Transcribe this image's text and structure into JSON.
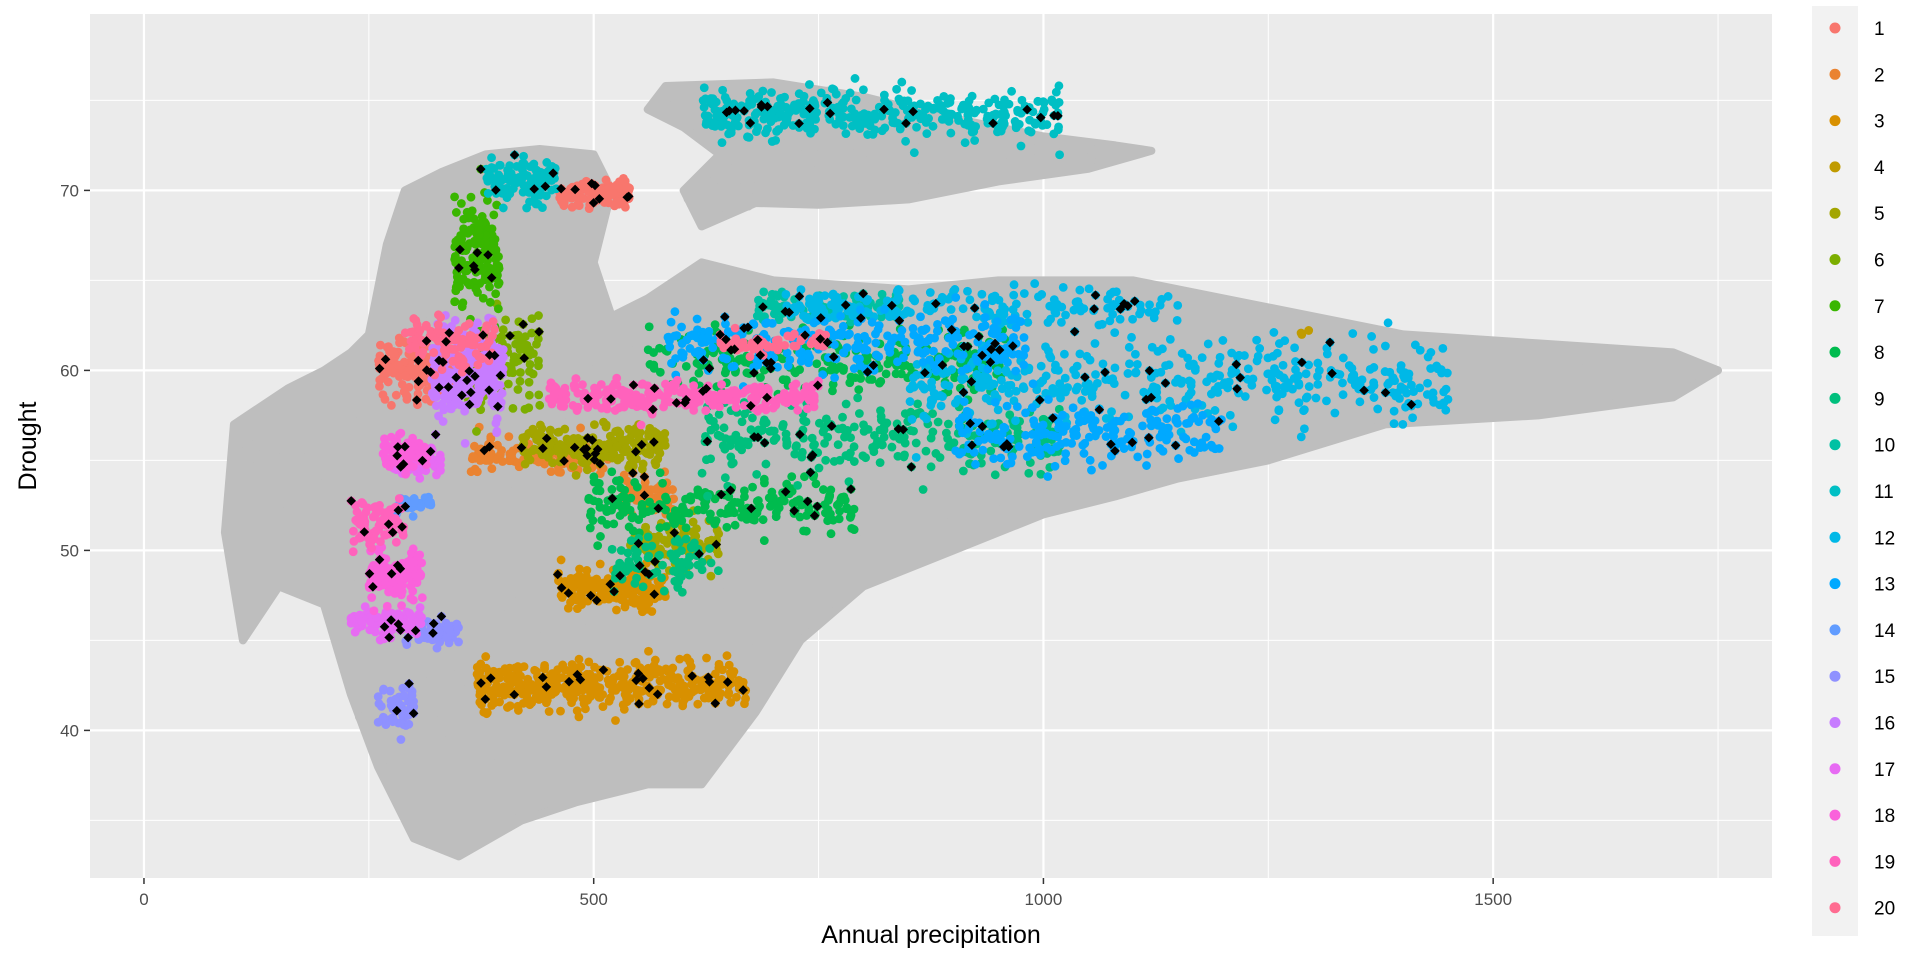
{
  "chart_data": {
    "type": "scatter",
    "xlabel": "Annual precipitation",
    "ylabel": "Drought",
    "xlim": [
      -60,
      1810
    ],
    "ylim": [
      31.8,
      79.8
    ],
    "x_ticks": [
      0,
      500,
      1000,
      1500
    ],
    "x_tick_labels": [
      "0",
      "500",
      "1000",
      "1500"
    ],
    "y_ticks": [
      40,
      50,
      60,
      70
    ],
    "y_tick_labels": [
      "40",
      "50",
      "60",
      "70"
    ],
    "grid": true,
    "legend_position": "right",
    "background_color": "#ebebeb",
    "background_points_color": "#bebebe",
    "highlight_points_color": "#000000",
    "background_region": [
      [
        90,
        51
      ],
      [
        110,
        45
      ],
      [
        150,
        48
      ],
      [
        200,
        47
      ],
      [
        230,
        42
      ],
      [
        260,
        38
      ],
      [
        300,
        34
      ],
      [
        350,
        33
      ],
      [
        420,
        35
      ],
      [
        480,
        36
      ],
      [
        560,
        37
      ],
      [
        620,
        37
      ],
      [
        680,
        41
      ],
      [
        730,
        45
      ],
      [
        800,
        48
      ],
      [
        900,
        50
      ],
      [
        1000,
        52
      ],
      [
        1080,
        53
      ],
      [
        1150,
        54
      ],
      [
        1250,
        55
      ],
      [
        1380,
        57
      ],
      [
        1550,
        57.5
      ],
      [
        1700,
        58.5
      ],
      [
        1750,
        60
      ],
      [
        1700,
        61
      ],
      [
        1550,
        61.5
      ],
      [
        1400,
        62
      ],
      [
        1200,
        64
      ],
      [
        1100,
        65
      ],
      [
        950,
        65
      ],
      [
        850,
        64.5
      ],
      [
        700,
        65
      ],
      [
        620,
        66
      ],
      [
        560,
        64
      ],
      [
        520,
        63
      ],
      [
        500,
        66
      ],
      [
        520,
        70
      ],
      [
        500,
        72
      ],
      [
        440,
        72.3
      ],
      [
        380,
        72
      ],
      [
        330,
        71
      ],
      [
        290,
        70
      ],
      [
        270,
        67
      ],
      [
        250,
        62
      ],
      [
        230,
        61
      ],
      [
        200,
        60
      ],
      [
        160,
        59
      ],
      [
        100,
        57
      ]
    ],
    "background_upper_region": [
      [
        580,
        75.8
      ],
      [
        700,
        76
      ],
      [
        800,
        75.2
      ],
      [
        880,
        74.2
      ],
      [
        1000,
        73
      ],
      [
        1080,
        72.5
      ],
      [
        1120,
        72.2
      ],
      [
        1050,
        71.2
      ],
      [
        950,
        70.5
      ],
      [
        850,
        69.5
      ],
      [
        750,
        69.2
      ],
      [
        680,
        69.3
      ],
      [
        620,
        68
      ],
      [
        600,
        70
      ],
      [
        640,
        72
      ],
      [
        600,
        73.5
      ],
      [
        560,
        74.5
      ]
    ],
    "series": [
      {
        "name": "1",
        "color": "#f8766d",
        "clusters": [
          [
            500,
            69.8,
            40,
            0.6,
            140
          ],
          [
            300,
            60,
            40,
            1.3,
            160
          ]
        ]
      },
      {
        "name": "2",
        "color": "#ea8331",
        "clusters": [
          [
            440,
            55.2,
            80,
            0.7,
            150
          ],
          [
            560,
            53.1,
            30,
            0.8,
            60
          ]
        ]
      },
      {
        "name": "3",
        "color": "#d89000",
        "clusters": [
          [
            520,
            42.5,
            150,
            1.1,
            420
          ],
          [
            520,
            47.8,
            60,
            1.0,
            160
          ]
        ]
      },
      {
        "name": "4",
        "color": "#c09b00",
        "clusters": [
          [
            1290,
            62,
            5,
            0.2,
            3
          ]
        ]
      },
      {
        "name": "5",
        "color": "#a3a500",
        "clusters": [
          [
            500,
            55.8,
            80,
            1.0,
            200
          ],
          [
            590,
            50.5,
            50,
            1.2,
            90
          ]
        ]
      },
      {
        "name": "6",
        "color": "#7cae00",
        "clusters": [
          [
            400,
            60.5,
            40,
            2.5,
            120
          ]
        ]
      },
      {
        "name": "7",
        "color": "#39b600",
        "clusters": [
          [
            370,
            66.5,
            25,
            2.4,
            160
          ]
        ]
      },
      {
        "name": "8",
        "color": "#00bb4e",
        "clusters": [
          [
            760,
            60.5,
            200,
            1.4,
            260
          ],
          [
            640,
            52.5,
            150,
            1.3,
            220
          ]
        ]
      },
      {
        "name": "9",
        "color": "#00bf7d",
        "clusters": [
          [
            820,
            56.3,
            200,
            1.6,
            280
          ],
          [
            580,
            49.3,
            60,
            1.2,
            80
          ]
        ]
      },
      {
        "name": "10",
        "color": "#00c1a3",
        "clusters": [
          [
            760,
            63.5,
            80,
            0.8,
            90
          ]
        ]
      },
      {
        "name": "11",
        "color": "#00bfc4",
        "clusters": [
          [
            820,
            74.3,
            200,
            1.1,
            380
          ],
          [
            420,
            70.5,
            40,
            1.0,
            100
          ]
        ]
      },
      {
        "name": "12",
        "color": "#00b8e7",
        "clusters": [
          [
            1150,
            59.5,
            300,
            2.0,
            420
          ],
          [
            930,
            63.5,
            220,
            0.8,
            200
          ]
        ]
      },
      {
        "name": "13",
        "color": "#00a9ff",
        "clusters": [
          [
            780,
            61.5,
            200,
            1.3,
            300
          ],
          [
            1050,
            56.5,
            150,
            1.5,
            200
          ]
        ]
      },
      {
        "name": "14",
        "color": "#619cff",
        "clusters": [
          [
            300,
            52.5,
            20,
            0.4,
            30
          ]
        ]
      },
      {
        "name": "15",
        "color": "#8f91ff",
        "clusters": [
          [
            320,
            45.5,
            30,
            0.5,
            80
          ],
          [
            280,
            41.5,
            20,
            1.2,
            50
          ]
        ]
      },
      {
        "name": "16",
        "color": "#c77cff",
        "clusters": [
          [
            360,
            59.8,
            40,
            2.0,
            260
          ]
        ]
      },
      {
        "name": "17",
        "color": "#e76bf3",
        "clusters": [
          [
            270,
            46,
            40,
            0.7,
            100
          ],
          [
            300,
            55,
            30,
            0.7,
            60
          ]
        ]
      },
      {
        "name": "18",
        "color": "#fa62db",
        "clusters": [
          [
            280,
            48.5,
            30,
            1.2,
            120
          ],
          [
            290,
            55.4,
            25,
            0.8,
            80
          ]
        ]
      },
      {
        "name": "19",
        "color": "#ff62bc",
        "clusters": [
          [
            600,
            58.5,
            150,
            0.8,
            250
          ],
          [
            260,
            51.5,
            30,
            1.2,
            80
          ]
        ]
      },
      {
        "name": "20",
        "color": "#ff6c91",
        "clusters": [
          [
            340,
            61.5,
            50,
            1.1,
            100
          ],
          [
            700,
            61.5,
            60,
            0.5,
            60
          ]
        ]
      }
    ]
  }
}
